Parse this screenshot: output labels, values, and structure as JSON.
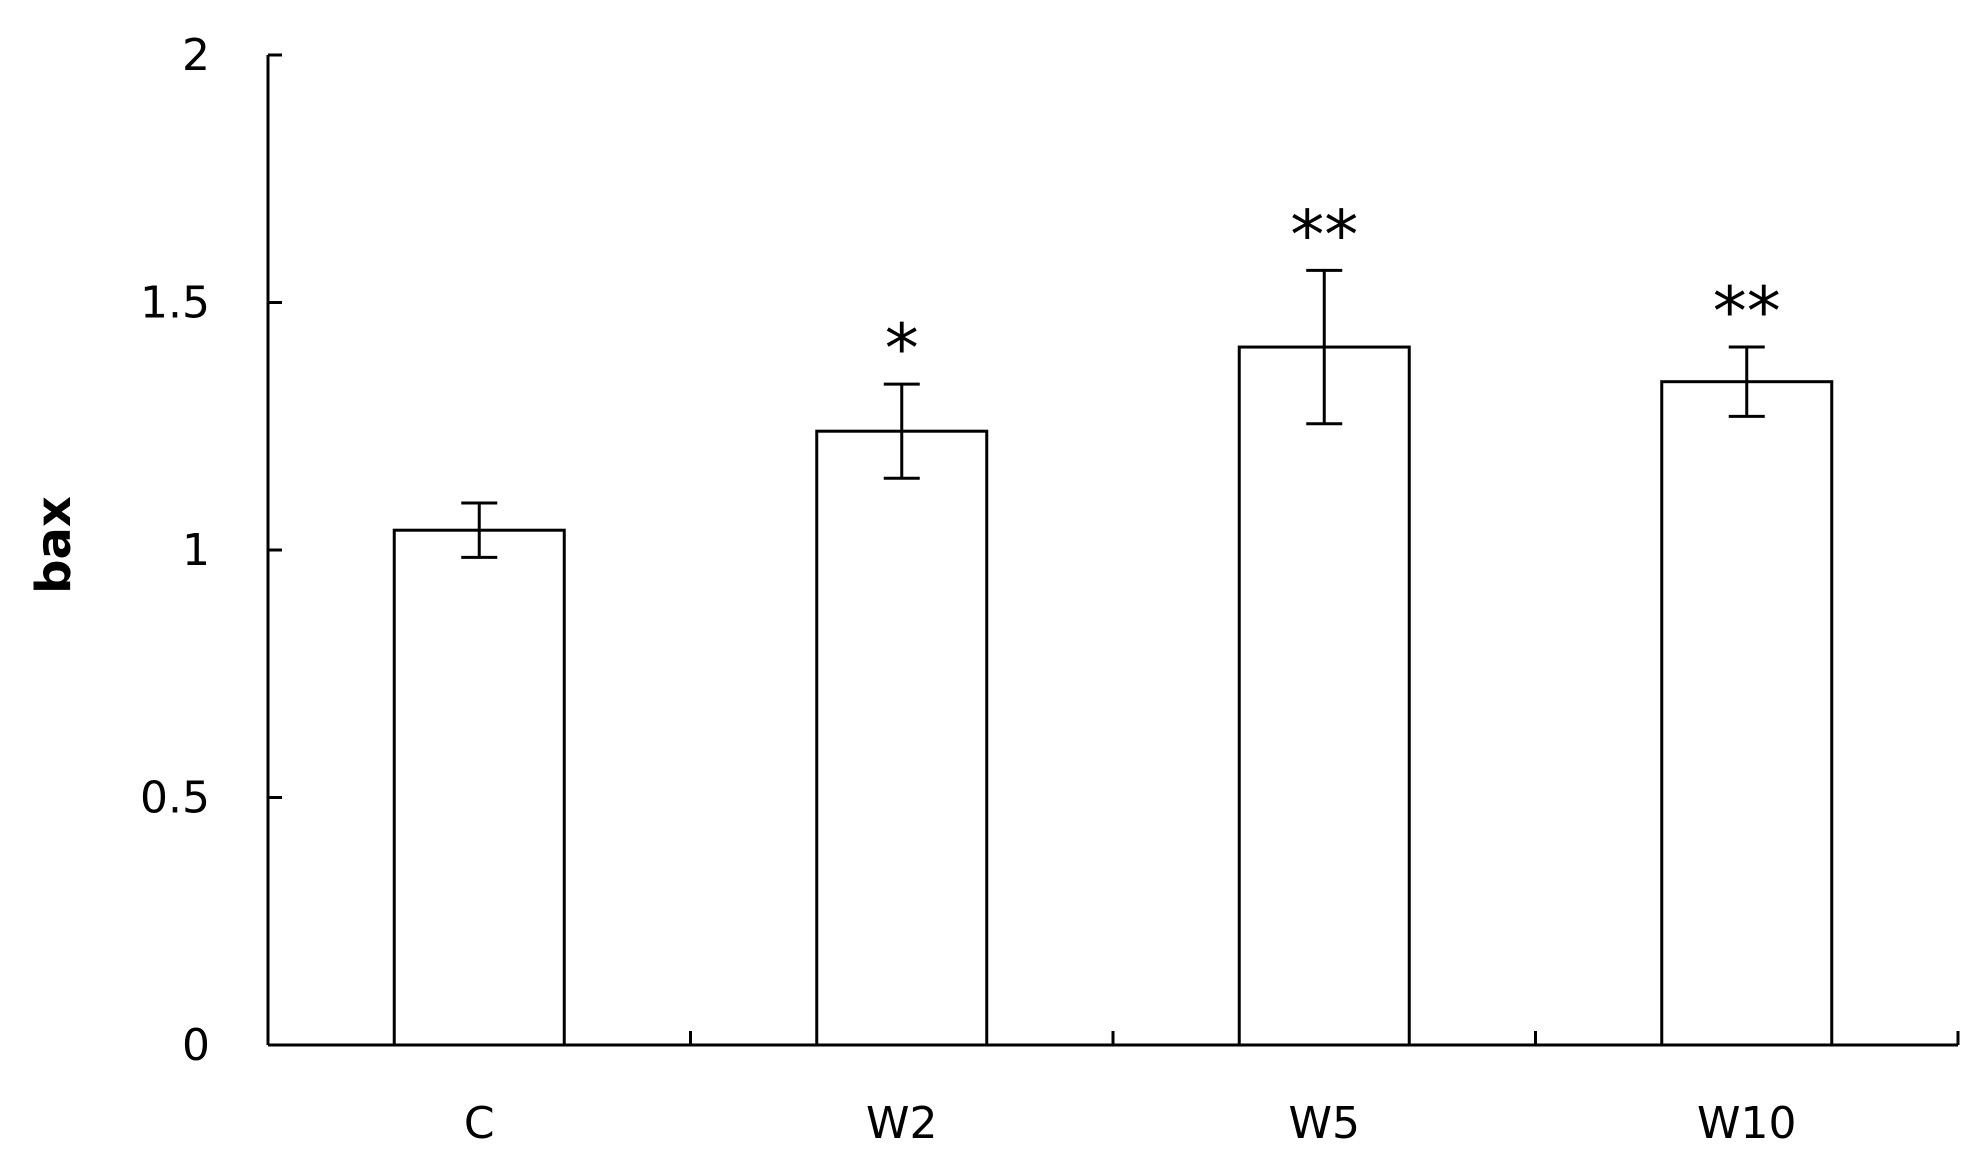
{
  "chart_data": {
    "type": "bar",
    "categories": [
      "C",
      "W2",
      "W5",
      "W10"
    ],
    "values": [
      1.04,
      1.24,
      1.41,
      1.34
    ],
    "errors": [
      0.055,
      0.095,
      0.155,
      0.07
    ],
    "significance": [
      "",
      "*",
      "**",
      "**"
    ],
    "title": "",
    "xlabel": "",
    "ylabel": "bax",
    "ylim": [
      0,
      2
    ],
    "yticks": [
      "0",
      "0.5",
      "1",
      "1.5",
      "2"
    ],
    "grid": false,
    "legend": "none",
    "colors": {
      "bar_fill": "#ffffff",
      "bar_stroke": "#000000",
      "axis": "#000000"
    }
  }
}
